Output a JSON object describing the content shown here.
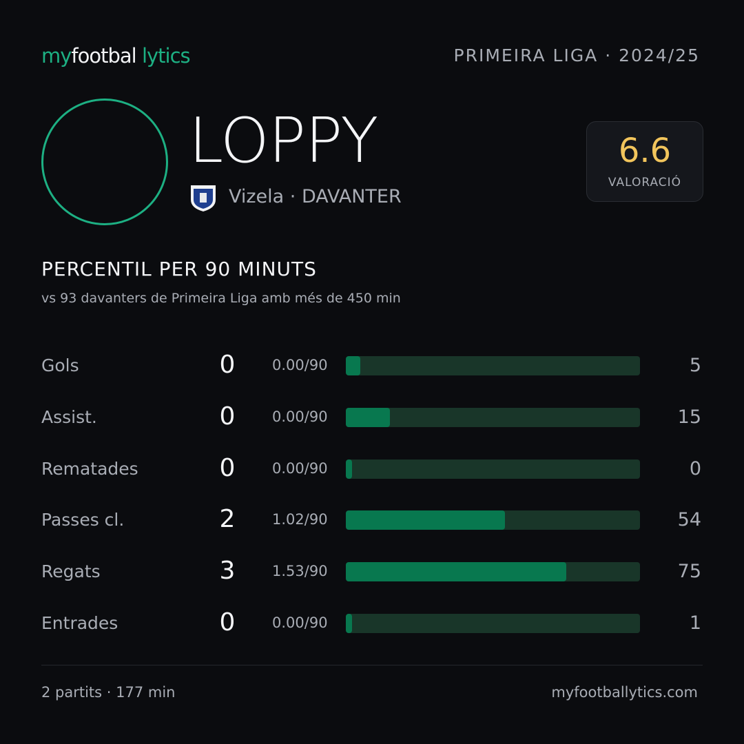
{
  "header": {
    "brand": [
      "my",
      "footbal",
      "lytics"
    ],
    "competition": "PRIMEIRA LIGA · 2024/25"
  },
  "player": {
    "name": "LOPPY",
    "team": "Vizela · DAVANTER"
  },
  "rating": {
    "value": 6.6,
    "label": "VALORACIÓ"
  },
  "section": {
    "title": "PERCENTIL PER 90 MINUTS",
    "subtitle": "vs 93 davanters de Primeira Liga amb més de 450 min"
  },
  "percentile_range": [
    0,
    100
  ],
  "rows": [
    {
      "label": "Gols",
      "value": 0,
      "per90": "0.00/90",
      "percentile": 5
    },
    {
      "label": "Assist.",
      "value": 0,
      "per90": "0.00/90",
      "percentile": 15
    },
    {
      "label": "Rematades",
      "value": 0,
      "per90": "0.00/90",
      "percentile": 0
    },
    {
      "label": "Passes cl.",
      "value": 2,
      "per90": "1.02/90",
      "percentile": 54
    },
    {
      "label": "Regats",
      "value": 3,
      "per90": "1.53/90",
      "percentile": 75
    },
    {
      "label": "Entrades",
      "value": 0,
      "per90": "0.00/90",
      "percentile": 1
    }
  ],
  "footer": {
    "left": "2 partits · 177 min",
    "right": "myfootballytics.com"
  }
}
